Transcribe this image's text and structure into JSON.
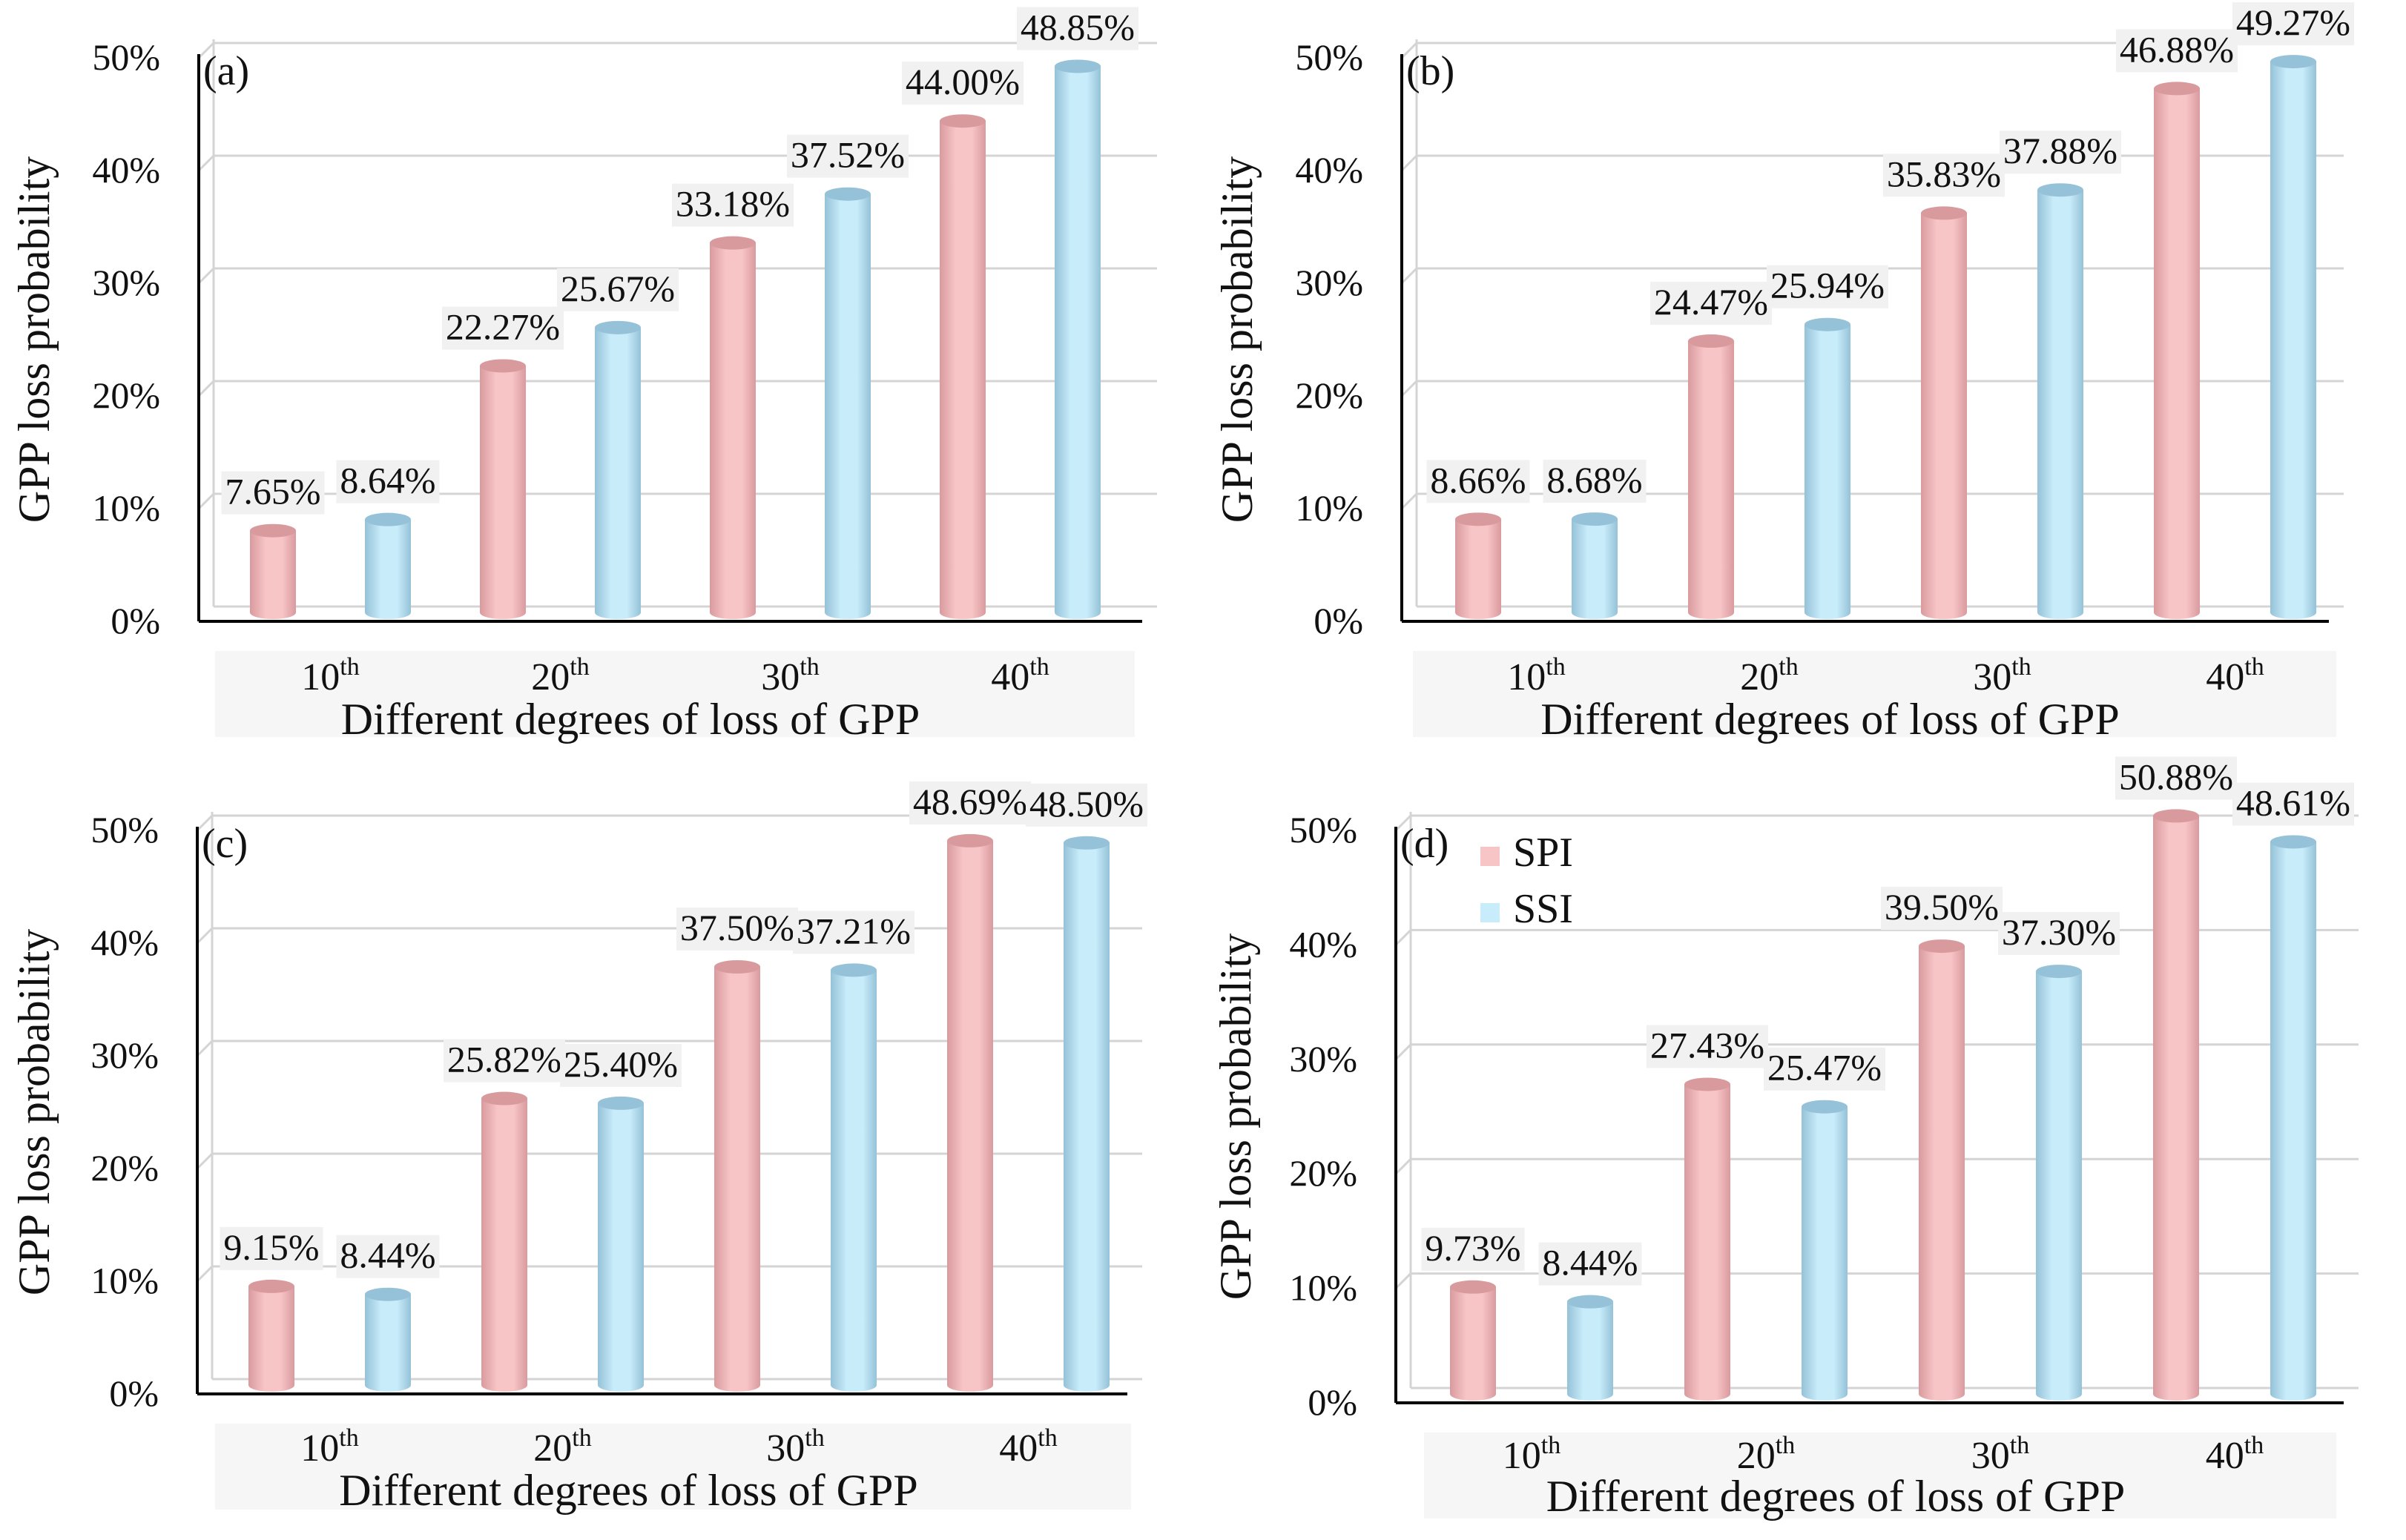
{
  "colors": {
    "spi": "#f8c5c7",
    "spi_dark": "#d99a9e",
    "ssi": "#c8ecfa",
    "ssi_dark": "#95c2d8",
    "grid": "#d4d4d4",
    "label_bg": "#f1f1f1",
    "axis": "#000000"
  },
  "chart_data": [
    {
      "type": "bar",
      "panel_label": "(a)",
      "ylabel": "GPP loss probability",
      "xlabel": "Different degrees of loss of GPP",
      "categories": [
        {
          "base": "10",
          "sup": "th"
        },
        {
          "base": "20",
          "sup": "th"
        },
        {
          "base": "30",
          "sup": "th"
        },
        {
          "base": "40",
          "sup": "th"
        }
      ],
      "series": [
        {
          "name": "SPI",
          "values": [
            7.65,
            22.27,
            33.18,
            44.0
          ],
          "labels": [
            "7.65%",
            "22.27%",
            "33.18%",
            "44.00%"
          ]
        },
        {
          "name": "SSI",
          "values": [
            8.64,
            25.67,
            37.52,
            48.85
          ],
          "labels": [
            "8.64%",
            "25.67%",
            "37.52%",
            "48.85%"
          ]
        }
      ],
      "yticks": [
        "0%",
        "10%",
        "20%",
        "30%",
        "40%",
        "50%"
      ],
      "ylim": [
        0,
        50
      ],
      "legend": null
    },
    {
      "type": "bar",
      "panel_label": "(b)",
      "ylabel": "GPP loss probability",
      "xlabel": "Different degrees of loss of GPP",
      "categories": [
        {
          "base": "10",
          "sup": "th"
        },
        {
          "base": "20",
          "sup": "th"
        },
        {
          "base": "30",
          "sup": "th"
        },
        {
          "base": "40",
          "sup": "th"
        }
      ],
      "series": [
        {
          "name": "SPI",
          "values": [
            8.66,
            24.47,
            35.83,
            46.88
          ],
          "labels": [
            "8.66%",
            "24.47%",
            "35.83%",
            "46.88%"
          ]
        },
        {
          "name": "SSI",
          "values": [
            8.68,
            25.94,
            37.88,
            49.27
          ],
          "labels": [
            "8.68%",
            "25.94%",
            "37.88%",
            "49.27%"
          ]
        }
      ],
      "yticks": [
        "0%",
        "10%",
        "20%",
        "30%",
        "40%",
        "50%"
      ],
      "ylim": [
        0,
        50
      ],
      "legend": null
    },
    {
      "type": "bar",
      "panel_label": "(c)",
      "ylabel": "GPP loss probability",
      "xlabel": "Different degrees of loss of GPP",
      "categories": [
        {
          "base": "10",
          "sup": "th"
        },
        {
          "base": "20",
          "sup": "th"
        },
        {
          "base": "30",
          "sup": "th"
        },
        {
          "base": "40",
          "sup": "th"
        }
      ],
      "series": [
        {
          "name": "SPI",
          "values": [
            9.15,
            25.82,
            37.5,
            48.69
          ],
          "labels": [
            "9.15%",
            "25.82%",
            "37.50%",
            "48.69%"
          ]
        },
        {
          "name": "SSI",
          "values": [
            8.44,
            25.4,
            37.21,
            48.5
          ],
          "labels": [
            "8.44%",
            "25.40%",
            "37.21%",
            "48.50%"
          ]
        }
      ],
      "yticks": [
        "0%",
        "10%",
        "20%",
        "30%",
        "40%",
        "50%"
      ],
      "ylim": [
        0,
        50
      ],
      "legend": null
    },
    {
      "type": "bar",
      "panel_label": "(d)",
      "ylabel": "GPP loss probability",
      "xlabel": "Different degrees of loss of GPP",
      "categories": [
        {
          "base": "10",
          "sup": "th"
        },
        {
          "base": "20",
          "sup": "th"
        },
        {
          "base": "30",
          "sup": "th"
        },
        {
          "base": "40",
          "sup": "th"
        }
      ],
      "series": [
        {
          "name": "SPI",
          "values": [
            9.73,
            27.43,
            39.5,
            50.88
          ],
          "labels": [
            "9.73%",
            "27.43%",
            "39.50%",
            "50.88%"
          ]
        },
        {
          "name": "SSI",
          "values": [
            8.44,
            25.47,
            37.3,
            48.61
          ],
          "labels": [
            "8.44%",
            "25.47%",
            "37.30%",
            "48.61%"
          ]
        }
      ],
      "yticks": [
        "0%",
        "10%",
        "20%",
        "30%",
        "40%",
        "50%"
      ],
      "ylim": [
        0,
        50
      ],
      "legend": [
        "SPI",
        "SSI"
      ]
    }
  ]
}
